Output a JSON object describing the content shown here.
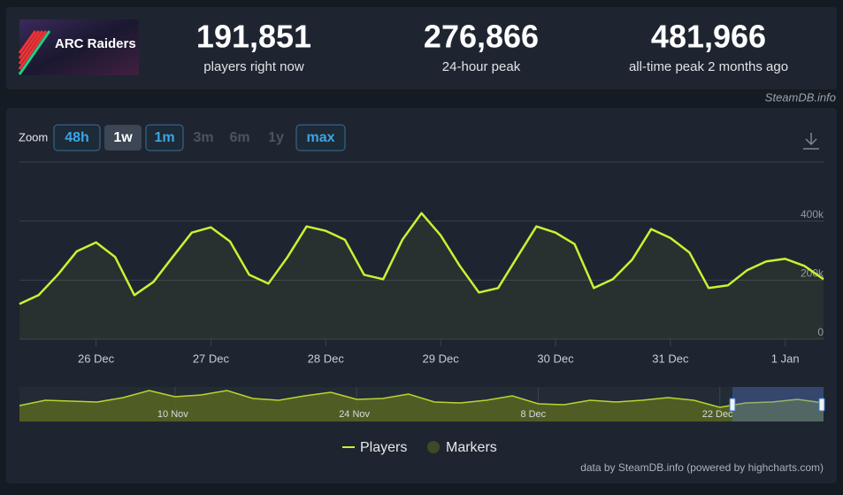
{
  "header": {
    "logo_text": "ARC Raiders",
    "stats": [
      {
        "value": "191,851",
        "label": "players right now"
      },
      {
        "value": "276,866",
        "label": "24-hour peak"
      },
      {
        "value": "481,966",
        "label": "all-time peak 2 months ago"
      }
    ],
    "source": "SteamDB.info"
  },
  "zoom": {
    "label": "Zoom",
    "buttons": [
      {
        "text": "48h",
        "state": "enabled"
      },
      {
        "text": "1w",
        "state": "active"
      },
      {
        "text": "1m",
        "state": "enabled"
      },
      {
        "text": "3m",
        "state": "disabled"
      },
      {
        "text": "6m",
        "state": "disabled"
      },
      {
        "text": "1y",
        "state": "disabled"
      },
      {
        "text": "max",
        "state": "enabled"
      }
    ]
  },
  "chart_data": [
    {
      "type": "line",
      "categories": [
        null,
        null,
        null,
        null,
        "26 Dec",
        null,
        null,
        null,
        null,
        null,
        "27 Dec",
        null,
        null,
        null,
        null,
        null,
        "28 Dec",
        null,
        null,
        null,
        null,
        null,
        "29 Dec",
        null,
        null,
        null,
        null,
        null,
        "30 Dec",
        null,
        null,
        null,
        null,
        null,
        "31 Dec",
        null,
        null,
        null,
        null,
        null,
        "1 Jan",
        null,
        null
      ],
      "series": [
        {
          "name": "Players",
          "color": "#c6f432",
          "values": [
            119000,
            149000,
            218000,
            298000,
            328000,
            278000,
            149000,
            194000,
            278000,
            361000,
            379000,
            331000,
            218000,
            188000,
            278000,
            382000,
            367000,
            337000,
            218000,
            203000,
            337000,
            427000,
            352000,
            248000,
            158000,
            173000,
            278000,
            382000,
            361000,
            322000,
            173000,
            203000,
            269000,
            373000,
            343000,
            293000,
            173000,
            182000,
            233000,
            263000,
            272000,
            248000,
            203000
          ]
        }
      ],
      "extra_legend": [
        {
          "name": "Markers",
          "color": "#3e4a26"
        }
      ],
      "ylim": [
        0,
        600000
      ],
      "yticks": [
        0,
        {
          "value": 200000,
          "label": "200k"
        },
        {
          "value": 400000,
          "label": "400k"
        }
      ],
      "grid": true
    },
    {
      "type": "area",
      "categories": [
        null,
        null,
        null,
        null,
        null,
        null,
        "10 Nov",
        null,
        null,
        null,
        null,
        null,
        null,
        "24 Nov",
        null,
        null,
        null,
        null,
        null,
        null,
        "8 Dec",
        null,
        null,
        null,
        null,
        null,
        null,
        "22 Dec",
        null,
        null,
        null,
        null
      ],
      "series": [
        {
          "name": "Players",
          "color": "#b9d530",
          "values": [
            231000,
            308000,
            295000,
            282000,
            346000,
            449000,
            359000,
            385000,
            449000,
            333000,
            308000,
            372000,
            423000,
            321000,
            333000,
            397000,
            282000,
            269000,
            308000,
            372000,
            256000,
            244000,
            308000,
            282000,
            308000,
            346000,
            308000,
            205000,
            269000,
            282000,
            321000,
            269000
          ]
        }
      ],
      "ylim": [
        0,
        500000
      ]
    }
  ],
  "credits": "data by SteamDB.info (powered by highcharts.com)"
}
